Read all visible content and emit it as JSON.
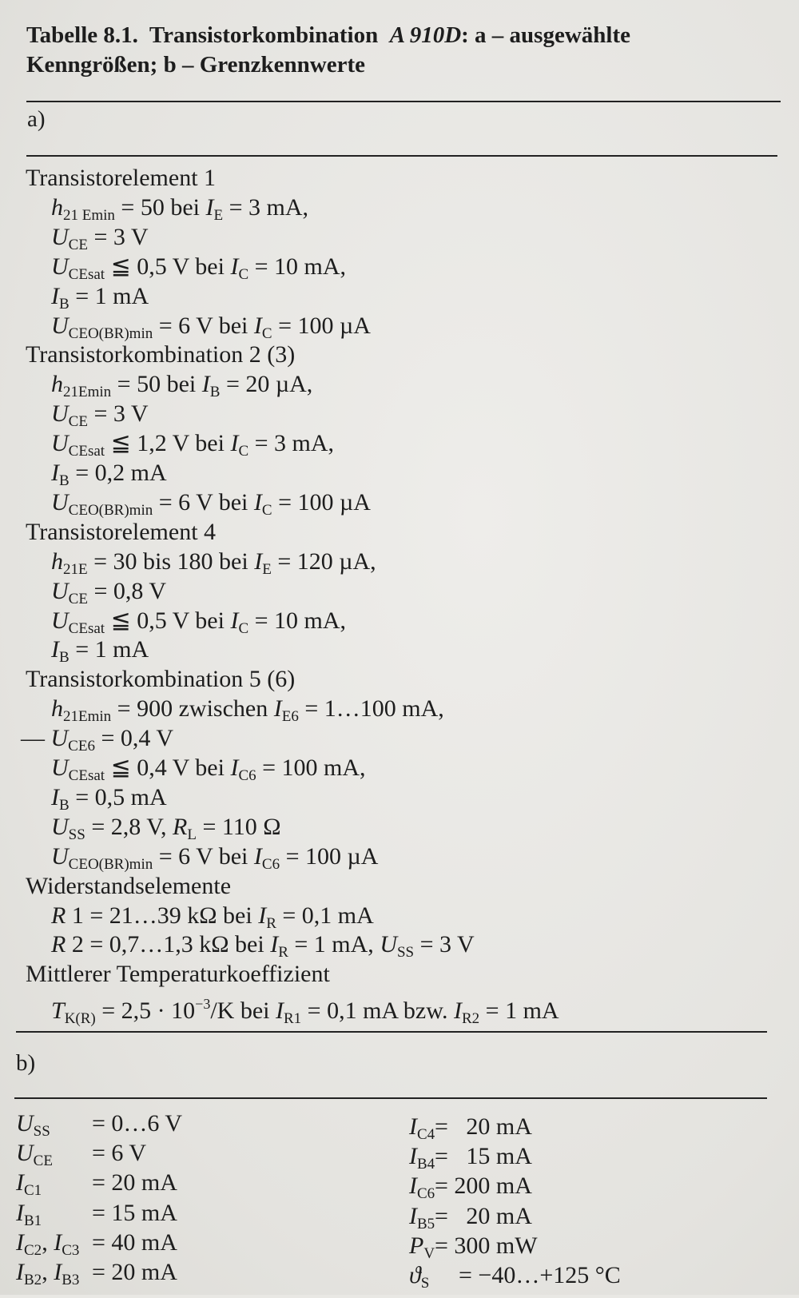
{
  "caption": {
    "prefix": "Tabelle 8.1.",
    "title_a": "Transistorkombination",
    "type": "A 910D",
    "title_b": ": a  –  ausgewählte",
    "line2": "Kenngrößen; b – Grenzkennwerte"
  },
  "part_a": {
    "label": "a)",
    "lines": [
      {
        "indent": 0,
        "seg": [
          [
            "Transistorelement 1",
            ""
          ]
        ]
      },
      {
        "indent": 1,
        "seg": [
          [
            "h",
            "i"
          ],
          [
            "21 Emin",
            "s"
          ],
          [
            " = 50 bei ",
            ""
          ],
          [
            "I",
            "i"
          ],
          [
            "E",
            "s"
          ],
          [
            " = 3 mA,",
            ""
          ]
        ]
      },
      {
        "indent": 1,
        "seg": [
          [
            "U",
            "i"
          ],
          [
            "CE",
            "s"
          ],
          [
            " = 3 V",
            ""
          ]
        ]
      },
      {
        "indent": 1,
        "seg": [
          [
            "U",
            "i"
          ],
          [
            "CEsat",
            "s"
          ],
          [
            " ≦ 0,5 V bei ",
            ""
          ],
          [
            "I",
            "i"
          ],
          [
            "C",
            "s"
          ],
          [
            " = 10 mA,",
            ""
          ]
        ]
      },
      {
        "indent": 1,
        "seg": [
          [
            "I",
            "i"
          ],
          [
            "B",
            "s"
          ],
          [
            " = 1 mA",
            ""
          ]
        ]
      },
      {
        "indent": 1,
        "seg": [
          [
            "U",
            "i"
          ],
          [
            "CEO(BR)min",
            "s"
          ],
          [
            " = 6 V bei ",
            ""
          ],
          [
            "I",
            "i"
          ],
          [
            "C",
            "s"
          ],
          [
            " = 100 µA",
            ""
          ]
        ]
      },
      {
        "indent": 0,
        "seg": [
          [
            "Transistorkombination 2 (3)",
            ""
          ]
        ]
      },
      {
        "indent": 1,
        "seg": [
          [
            "h",
            "i"
          ],
          [
            "21Emin",
            "s"
          ],
          [
            " = 50 bei ",
            ""
          ],
          [
            "I",
            "i"
          ],
          [
            "B",
            "s"
          ],
          [
            " = 20 µA,",
            ""
          ]
        ]
      },
      {
        "indent": 1,
        "seg": [
          [
            "U",
            "i"
          ],
          [
            "CE",
            "s"
          ],
          [
            " = 3 V",
            ""
          ]
        ]
      },
      {
        "indent": 1,
        "seg": [
          [
            "U",
            "i"
          ],
          [
            "CEsat",
            "s"
          ],
          [
            " ≦ 1,2 V bei ",
            ""
          ],
          [
            "I",
            "i"
          ],
          [
            "C",
            "s"
          ],
          [
            " = 3 mA,",
            ""
          ]
        ]
      },
      {
        "indent": 1,
        "seg": [
          [
            "I",
            "i"
          ],
          [
            "B",
            "s"
          ],
          [
            " = 0,2 mA",
            ""
          ]
        ]
      },
      {
        "indent": 1,
        "seg": [
          [
            "U",
            "i"
          ],
          [
            "CEO(BR)min",
            "s"
          ],
          [
            " = 6 V bei ",
            ""
          ],
          [
            "I",
            "i"
          ],
          [
            "C",
            "s"
          ],
          [
            " = 100 µA",
            ""
          ]
        ]
      },
      {
        "indent": 0,
        "seg": [
          [
            "Transistorelement 4",
            ""
          ]
        ]
      },
      {
        "indent": 1,
        "seg": [
          [
            "h",
            "i"
          ],
          [
            "21E",
            "s"
          ],
          [
            " = 30 bis 180 bei ",
            ""
          ],
          [
            "I",
            "i"
          ],
          [
            "E",
            "s"
          ],
          [
            " = 120 µA,",
            ""
          ]
        ]
      },
      {
        "indent": 1,
        "seg": [
          [
            "U",
            "i"
          ],
          [
            "CE",
            "s"
          ],
          [
            " = 0,8 V",
            ""
          ]
        ]
      },
      {
        "indent": 1,
        "seg": [
          [
            "U",
            "i"
          ],
          [
            "CEsat",
            "s"
          ],
          [
            " ≦ 0,5 V bei ",
            ""
          ],
          [
            "I",
            "i"
          ],
          [
            "C",
            "s"
          ],
          [
            " = 10 mA,",
            ""
          ]
        ]
      },
      {
        "indent": 1,
        "seg": [
          [
            "I",
            "i"
          ],
          [
            "B",
            "s"
          ],
          [
            " = 1 mA",
            ""
          ]
        ]
      },
      {
        "indent": 0,
        "seg": [
          [
            "Transistorkombination 5 (6)",
            ""
          ]
        ]
      },
      {
        "indent": 1,
        "seg": [
          [
            "h",
            "i"
          ],
          [
            "21Emin",
            "s"
          ],
          [
            " = 900 zwischen ",
            ""
          ],
          [
            "I",
            "i"
          ],
          [
            "E6",
            "s"
          ],
          [
            " = 1…100 mA,",
            ""
          ]
        ]
      },
      {
        "indent": 2,
        "seg": [
          [
            "— ",
            ""
          ],
          [
            "U",
            "i"
          ],
          [
            "CE6",
            "s"
          ],
          [
            " = 0,4 V",
            ""
          ]
        ]
      },
      {
        "indent": 1,
        "seg": [
          [
            "U",
            "i"
          ],
          [
            "CEsat",
            "s"
          ],
          [
            " ≦ 0,4 V bei ",
            ""
          ],
          [
            "I",
            "i"
          ],
          [
            "C6",
            "s"
          ],
          [
            " = 100 mA,",
            ""
          ]
        ]
      },
      {
        "indent": 1,
        "seg": [
          [
            "I",
            "i"
          ],
          [
            "B",
            "s"
          ],
          [
            " = 0,5 mA",
            ""
          ]
        ]
      },
      {
        "indent": 1,
        "seg": [
          [
            "U",
            "i"
          ],
          [
            "SS",
            "s"
          ],
          [
            " = 2,8 V, ",
            ""
          ],
          [
            "R",
            "i"
          ],
          [
            "L",
            "s"
          ],
          [
            " = 110 Ω",
            ""
          ]
        ]
      },
      {
        "indent": 1,
        "seg": [
          [
            "U",
            "i"
          ],
          [
            "CEO(BR)min",
            "s"
          ],
          [
            " = 6 V bei ",
            ""
          ],
          [
            "I",
            "i"
          ],
          [
            "C6",
            "s"
          ],
          [
            " = 100 µA",
            ""
          ]
        ]
      },
      {
        "indent": 0,
        "seg": [
          [
            "Widerstandselemente",
            ""
          ]
        ]
      },
      {
        "indent": 1,
        "seg": [
          [
            "R",
            "i"
          ],
          [
            " 1 = 21…39 kΩ bei ",
            ""
          ],
          [
            "I",
            "i"
          ],
          [
            "R",
            "s"
          ],
          [
            " = 0,1 mA",
            ""
          ]
        ]
      },
      {
        "indent": 1,
        "seg": [
          [
            "R",
            "i"
          ],
          [
            " 2 = 0,7…1,3 kΩ bei ",
            ""
          ],
          [
            "I",
            "i"
          ],
          [
            "R",
            "s"
          ],
          [
            " = 1 mA, ",
            ""
          ],
          [
            "U",
            "i"
          ],
          [
            "SS",
            "s"
          ],
          [
            " = 3 V",
            ""
          ]
        ]
      },
      {
        "indent": 0,
        "seg": [
          [
            "Mittlerer Temperaturkoeffizient",
            ""
          ]
        ]
      },
      {
        "indent": 1,
        "seg": [
          [
            "T",
            "i"
          ],
          [
            "K(R)",
            "s"
          ],
          [
            " = 2,5 · 10",
            ""
          ],
          [
            "−3",
            "p"
          ],
          [
            "/K bei ",
            ""
          ],
          [
            "I",
            "i"
          ],
          [
            "R1",
            "s"
          ],
          [
            " = 0,1 mA bzw. ",
            ""
          ],
          [
            "I",
            "i"
          ],
          [
            "R2",
            "s"
          ],
          [
            " = 1 mA",
            ""
          ]
        ]
      }
    ]
  },
  "part_b": {
    "label": "b)",
    "left": [
      {
        "sym": [
          [
            "U",
            "i"
          ],
          [
            "SS",
            "s"
          ]
        ],
        "val": "= 0…6 V"
      },
      {
        "sym": [
          [
            "U",
            "i"
          ],
          [
            "CE",
            "s"
          ]
        ],
        "val": "= 6 V"
      },
      {
        "sym": [
          [
            "I",
            "i"
          ],
          [
            "C1",
            "s"
          ]
        ],
        "val": "= 20 mA"
      },
      {
        "sym": [
          [
            "I",
            "i"
          ],
          [
            "B1",
            "s"
          ]
        ],
        "val": "= 15 mA"
      },
      {
        "sym": [
          [
            "I",
            "i"
          ],
          [
            "C2",
            "s"
          ],
          [
            ", ",
            ""
          ],
          [
            "I",
            "i"
          ],
          [
            "C3",
            "s"
          ]
        ],
        "val": "= 40 mA"
      },
      {
        "sym": [
          [
            "I",
            "i"
          ],
          [
            "B2",
            "s"
          ],
          [
            ", ",
            ""
          ],
          [
            "I",
            "i"
          ],
          [
            "B3",
            "s"
          ]
        ],
        "val": "= 20 mA"
      }
    ],
    "right": [
      {
        "sym": [
          [
            "I",
            "i"
          ],
          [
            "C4",
            "s"
          ]
        ],
        "val": "=   20 mA"
      },
      {
        "sym": [
          [
            "I",
            "i"
          ],
          [
            "B4",
            "s"
          ]
        ],
        "val": "=   15 mA"
      },
      {
        "sym": [
          [
            "I",
            "i"
          ],
          [
            "C6",
            "s"
          ]
        ],
        "val": "= 200 mA"
      },
      {
        "sym": [
          [
            "I",
            "i"
          ],
          [
            "B5",
            "s"
          ]
        ],
        "val": "=   20 mA"
      },
      {
        "sym": [
          [
            "P",
            "i"
          ],
          [
            "V",
            "s"
          ]
        ],
        "val": "= 300 mW"
      },
      {
        "sym": [
          [
            "ϑ",
            "i"
          ],
          [
            "S",
            "s"
          ]
        ],
        "val": "= −40…+125 °C"
      }
    ]
  }
}
